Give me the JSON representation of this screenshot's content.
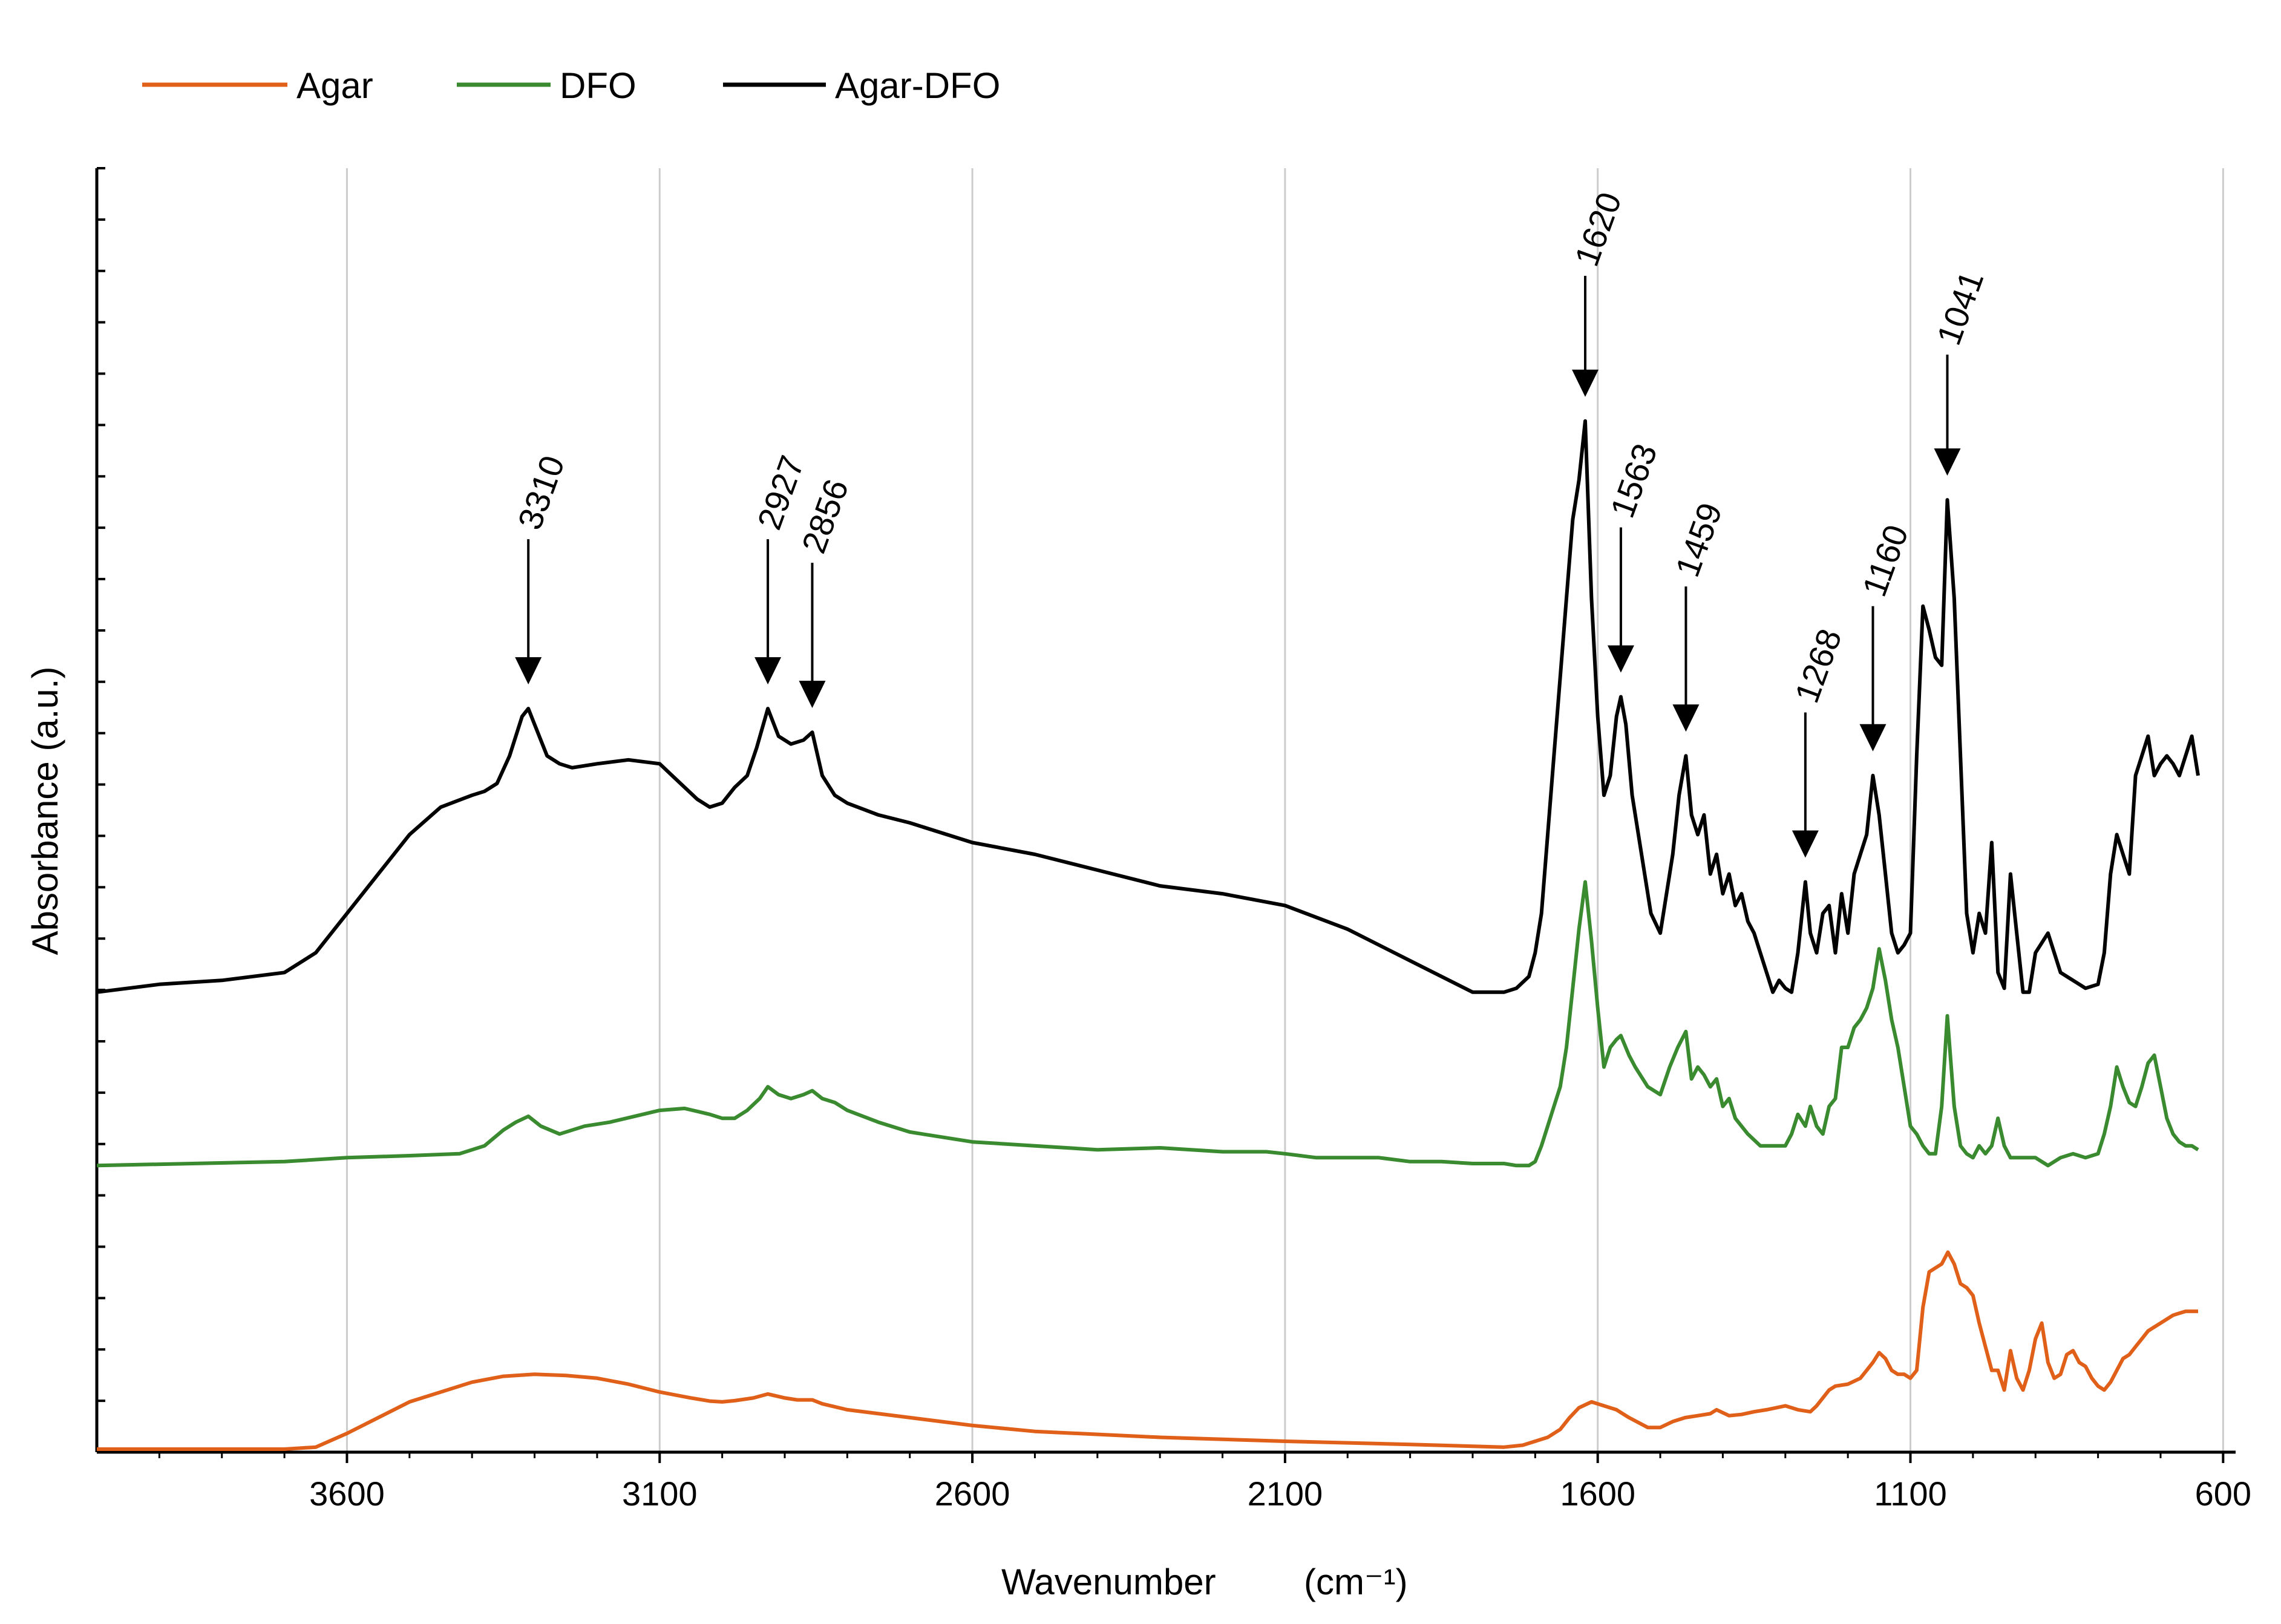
{
  "chart_data": {
    "type": "line",
    "title": "",
    "xlabel": "Wavenumber",
    "xlabel_unit": "(cm⁻¹)",
    "ylabel": "Absorbance (a.u.)",
    "xlim": [
      4000,
      580
    ],
    "x_reversed": true,
    "grid": "vertical",
    "x_ticks": [
      3600,
      3100,
      2600,
      2100,
      1600,
      1100,
      600
    ],
    "x_tick_labels": [
      "3600",
      "3100",
      "2600",
      "2100",
      "1600",
      "1100",
      "600"
    ],
    "legend": {
      "position": "top-left",
      "entries": [
        "Agar",
        "DFO",
        "Agar-DFO"
      ]
    },
    "colors": {
      "Agar": "#e0601a",
      "DFO": "#3a8a30",
      "Agar-DFO": "#000000",
      "grid": "#cccccc",
      "axis": "#000000"
    },
    "series": [
      {
        "name": "Agar",
        "color": "#e0601a",
        "x": [
          4000,
          3700,
          3650,
          3600,
          3500,
          3400,
          3350,
          3300,
          3250,
          3200,
          3150,
          3100,
          3050,
          3020,
          3000,
          2980,
          2950,
          2927,
          2900,
          2880,
          2856,
          2840,
          2800,
          2700,
          2600,
          2500,
          2300,
          2100,
          1900,
          1750,
          1720,
          1700,
          1680,
          1660,
          1645,
          1630,
          1610,
          1590,
          1570,
          1550,
          1520,
          1500,
          1480,
          1460,
          1440,
          1420,
          1410,
          1390,
          1370,
          1350,
          1330,
          1300,
          1280,
          1260,
          1250,
          1240,
          1230,
          1220,
          1200,
          1180,
          1170,
          1160,
          1150,
          1140,
          1130,
          1120,
          1110,
          1100,
          1090,
          1080,
          1070,
          1060,
          1050,
          1040,
          1030,
          1020,
          1010,
          1000,
          990,
          980,
          970,
          960,
          950,
          940,
          930,
          920,
          910,
          900,
          890,
          880,
          870,
          860,
          850,
          840,
          830,
          820,
          810,
          800,
          790,
          780,
          770,
          760,
          750,
          740,
          730,
          720,
          710,
          700,
          690,
          680,
          670,
          660,
          650,
          640
        ],
        "y": [
          0.0,
          0.0,
          0.005,
          0.04,
          0.12,
          0.17,
          0.185,
          0.19,
          0.187,
          0.18,
          0.165,
          0.145,
          0.13,
          0.122,
          0.12,
          0.123,
          0.13,
          0.14,
          0.13,
          0.125,
          0.125,
          0.115,
          0.1,
          0.08,
          0.06,
          0.045,
          0.03,
          0.02,
          0.012,
          0.005,
          0.01,
          0.02,
          0.03,
          0.05,
          0.08,
          0.105,
          0.12,
          0.11,
          0.1,
          0.08,
          0.055,
          0.055,
          0.07,
          0.08,
          0.085,
          0.09,
          0.1,
          0.085,
          0.088,
          0.095,
          0.1,
          0.11,
          0.1,
          0.095,
          0.11,
          0.13,
          0.15,
          0.16,
          0.165,
          0.18,
          0.2,
          0.22,
          0.245,
          0.23,
          0.2,
          0.19,
          0.19,
          0.18,
          0.2,
          0.36,
          0.45,
          0.46,
          0.47,
          0.5,
          0.47,
          0.42,
          0.41,
          0.39,
          0.32,
          0.26,
          0.2,
          0.2,
          0.15,
          0.25,
          0.18,
          0.15,
          0.2,
          0.28,
          0.32,
          0.22,
          0.18,
          0.19,
          0.24,
          0.25,
          0.22,
          0.21,
          0.18,
          0.16,
          0.15,
          0.17,
          0.2,
          0.23,
          0.24,
          0.26,
          0.28,
          0.3,
          0.31,
          0.32,
          0.33,
          0.34,
          0.345,
          0.35,
          0.35,
          0.35
        ],
        "offset": 0
      },
      {
        "name": "DFO",
        "color": "#3a8a30",
        "x": [
          4000,
          3700,
          3600,
          3500,
          3420,
          3380,
          3350,
          3330,
          3310,
          3290,
          3260,
          3220,
          3180,
          3140,
          3100,
          3060,
          3020,
          3000,
          2980,
          2960,
          2940,
          2927,
          2910,
          2890,
          2870,
          2856,
          2840,
          2820,
          2800,
          2750,
          2700,
          2600,
          2500,
          2400,
          2300,
          2200,
          2130,
          2100,
          2050,
          2000,
          1950,
          1900,
          1850,
          1800,
          1750,
          1730,
          1710,
          1700,
          1690,
          1680,
          1670,
          1660,
          1650,
          1640,
          1630,
          1620,
          1610,
          1600,
          1590,
          1580,
          1570,
          1563,
          1550,
          1540,
          1520,
          1500,
          1485,
          1472,
          1459,
          1450,
          1440,
          1430,
          1420,
          1410,
          1400,
          1390,
          1380,
          1370,
          1360,
          1340,
          1320,
          1300,
          1290,
          1280,
          1268,
          1260,
          1250,
          1240,
          1230,
          1220,
          1210,
          1200,
          1190,
          1180,
          1170,
          1160,
          1150,
          1140,
          1130,
          1120,
          1110,
          1100,
          1090,
          1080,
          1070,
          1060,
          1050,
          1041,
          1030,
          1020,
          1010,
          1000,
          990,
          980,
          970,
          960,
          950,
          940,
          920,
          900,
          880,
          860,
          840,
          820,
          800,
          790,
          780,
          770,
          760,
          750,
          740,
          730,
          720,
          710,
          700,
          690,
          680,
          670,
          660,
          650,
          640
        ],
        "y": [
          0.0,
          0.01,
          0.02,
          0.025,
          0.03,
          0.05,
          0.09,
          0.11,
          0.125,
          0.1,
          0.08,
          0.1,
          0.11,
          0.125,
          0.14,
          0.145,
          0.13,
          0.12,
          0.12,
          0.14,
          0.17,
          0.2,
          0.18,
          0.17,
          0.18,
          0.19,
          0.17,
          0.16,
          0.14,
          0.11,
          0.085,
          0.06,
          0.05,
          0.04,
          0.045,
          0.035,
          0.035,
          0.03,
          0.02,
          0.02,
          0.02,
          0.01,
          0.01,
          0.005,
          0.005,
          0.0,
          0.0,
          0.01,
          0.05,
          0.1,
          0.15,
          0.2,
          0.3,
          0.45,
          0.6,
          0.72,
          0.57,
          0.4,
          0.25,
          0.3,
          0.32,
          0.33,
          0.28,
          0.25,
          0.2,
          0.18,
          0.25,
          0.3,
          0.34,
          0.22,
          0.25,
          0.23,
          0.2,
          0.22,
          0.15,
          0.17,
          0.12,
          0.1,
          0.08,
          0.05,
          0.05,
          0.05,
          0.08,
          0.13,
          0.1,
          0.15,
          0.1,
          0.08,
          0.15,
          0.17,
          0.3,
          0.3,
          0.35,
          0.37,
          0.4,
          0.45,
          0.55,
          0.47,
          0.37,
          0.3,
          0.2,
          0.1,
          0.08,
          0.05,
          0.03,
          0.03,
          0.15,
          0.38,
          0.15,
          0.05,
          0.03,
          0.02,
          0.05,
          0.03,
          0.05,
          0.12,
          0.05,
          0.02,
          0.02,
          0.02,
          0.0,
          0.02,
          0.03,
          0.02,
          0.03,
          0.08,
          0.15,
          0.25,
          0.2,
          0.16,
          0.15,
          0.2,
          0.26,
          0.28,
          0.2,
          0.12,
          0.08,
          0.06,
          0.05,
          0.05,
          0.04
        ],
        "offset": 0.72
      },
      {
        "name": "Agar-DFO",
        "color": "#000000",
        "x": [
          4000,
          3900,
          3800,
          3700,
          3650,
          3600,
          3550,
          3500,
          3450,
          3400,
          3380,
          3360,
          3340,
          3320,
          3310,
          3300,
          3280,
          3260,
          3240,
          3200,
          3150,
          3100,
          3080,
          3060,
          3040,
          3020,
          3000,
          2980,
          2960,
          2945,
          2927,
          2910,
          2890,
          2870,
          2856,
          2840,
          2820,
          2800,
          2750,
          2700,
          2600,
          2500,
          2400,
          2300,
          2200,
          2100,
          2000,
          1900,
          1800,
          1750,
          1730,
          1710,
          1700,
          1690,
          1680,
          1670,
          1660,
          1650,
          1640,
          1630,
          1620,
          1610,
          1600,
          1590,
          1580,
          1570,
          1563,
          1555,
          1545,
          1530,
          1515,
          1500,
          1490,
          1480,
          1470,
          1459,
          1450,
          1440,
          1430,
          1420,
          1410,
          1400,
          1390,
          1380,
          1370,
          1360,
          1350,
          1340,
          1330,
          1320,
          1310,
          1300,
          1290,
          1280,
          1268,
          1260,
          1250,
          1240,
          1230,
          1220,
          1210,
          1200,
          1190,
          1180,
          1170,
          1160,
          1150,
          1140,
          1130,
          1120,
          1110,
          1100,
          1090,
          1080,
          1070,
          1060,
          1050,
          1041,
          1030,
          1020,
          1010,
          1000,
          990,
          980,
          970,
          960,
          950,
          940,
          930,
          920,
          910,
          900,
          880,
          860,
          840,
          820,
          800,
          790,
          780,
          770,
          760,
          750,
          740,
          730,
          720,
          710,
          700,
          690,
          680,
          670,
          660,
          650,
          640
        ],
        "y": [
          0.0,
          0.02,
          0.03,
          0.05,
          0.1,
          0.2,
          0.3,
          0.4,
          0.47,
          0.5,
          0.51,
          0.53,
          0.6,
          0.7,
          0.72,
          0.68,
          0.6,
          0.58,
          0.57,
          0.58,
          0.59,
          0.58,
          0.55,
          0.52,
          0.49,
          0.47,
          0.48,
          0.52,
          0.55,
          0.62,
          0.72,
          0.65,
          0.63,
          0.64,
          0.66,
          0.55,
          0.5,
          0.48,
          0.45,
          0.43,
          0.38,
          0.35,
          0.31,
          0.27,
          0.25,
          0.22,
          0.16,
          0.08,
          0.0,
          0.0,
          0.01,
          0.04,
          0.1,
          0.2,
          0.4,
          0.6,
          0.8,
          1.0,
          1.2,
          1.3,
          1.45,
          1.0,
          0.7,
          0.5,
          0.55,
          0.7,
          0.75,
          0.68,
          0.5,
          0.35,
          0.2,
          0.15,
          0.25,
          0.35,
          0.5,
          0.6,
          0.45,
          0.4,
          0.45,
          0.3,
          0.35,
          0.25,
          0.3,
          0.22,
          0.25,
          0.18,
          0.15,
          0.1,
          0.05,
          0.0,
          0.03,
          0.01,
          0.0,
          0.1,
          0.28,
          0.15,
          0.1,
          0.2,
          0.22,
          0.1,
          0.25,
          0.15,
          0.3,
          0.35,
          0.4,
          0.55,
          0.45,
          0.3,
          0.15,
          0.1,
          0.12,
          0.15,
          0.6,
          0.98,
          0.92,
          0.85,
          0.83,
          1.25,
          1.0,
          0.6,
          0.2,
          0.1,
          0.2,
          0.15,
          0.38,
          0.05,
          0.01,
          0.3,
          0.15,
          0.0,
          0.0,
          0.1,
          0.15,
          0.05,
          0.03,
          0.01,
          0.02,
          0.1,
          0.3,
          0.4,
          0.35,
          0.3,
          0.55,
          0.6,
          0.65,
          0.55,
          0.58,
          0.6,
          0.58,
          0.55,
          0.6,
          0.65,
          0.55
        ],
        "offset": 1.16
      }
    ],
    "annotations": [
      {
        "label": "3310",
        "x": 3310
      },
      {
        "label": "2927",
        "x": 2927
      },
      {
        "label": "2856",
        "x": 2856
      },
      {
        "label": "1620",
        "x": 1620
      },
      {
        "label": "1563",
        "x": 1563
      },
      {
        "label": "1459",
        "x": 1459
      },
      {
        "label": "1268",
        "x": 1268
      },
      {
        "label": "1160",
        "x": 1160
      },
      {
        "label": "1041",
        "x": 1041
      }
    ]
  }
}
